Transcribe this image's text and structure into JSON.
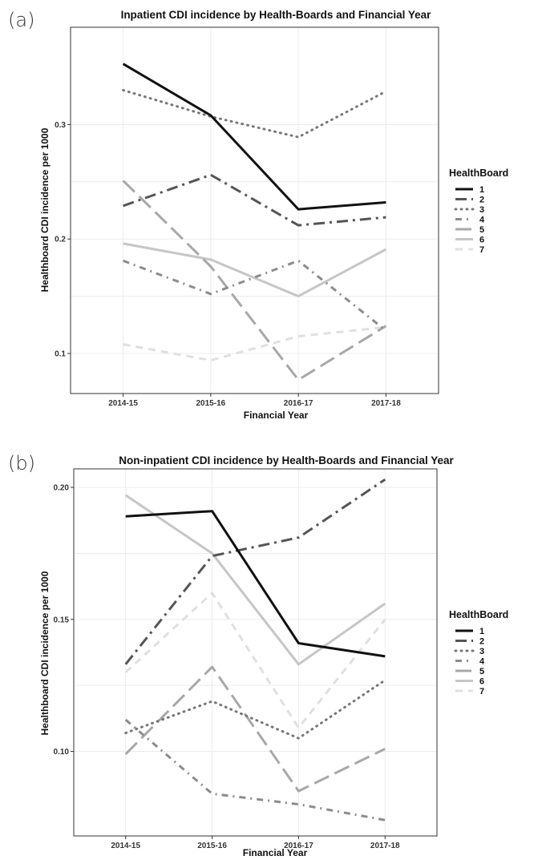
{
  "chart_data": [
    {
      "type": "line",
      "panel_label": "(a)",
      "title": "Inpatient CDI incidence by Health-Boards and Financial Year",
      "xlabel": "Financial Year",
      "ylabel": "Healthboard CDI incidence per 1000",
      "categories": [
        "2014-15",
        "2015-16",
        "2016-17",
        "2017-18"
      ],
      "ylim": [
        0.065,
        0.385
      ],
      "yticks": [
        0.1,
        0.2,
        0.3
      ],
      "ytick_labels": [
        "0.1",
        "0.2",
        "0.3"
      ],
      "grid": true,
      "legend": {
        "title": "HealthBoard",
        "placement": "right"
      },
      "series": [
        {
          "name": "1",
          "values": [
            0.353,
            0.308,
            0.226,
            0.232
          ],
          "color": "#111111",
          "dash": "solid",
          "width": 3
        },
        {
          "name": "2",
          "values": [
            0.229,
            0.256,
            0.212,
            0.219
          ],
          "color": "#555555",
          "dash": "dashdot",
          "width": 3
        },
        {
          "name": "3",
          "values": [
            0.33,
            0.307,
            0.289,
            0.329
          ],
          "color": "#777777",
          "dash": "dotted",
          "width": 3
        },
        {
          "name": "4",
          "values": [
            0.181,
            0.152,
            0.181,
            0.12
          ],
          "color": "#8c8c8c",
          "dash": "dashdot2",
          "width": 3
        },
        {
          "name": "5",
          "values": [
            0.251,
            0.176,
            0.077,
            0.124
          ],
          "color": "#a8a8a8",
          "dash": "longdash",
          "width": 3
        },
        {
          "name": "6",
          "values": [
            0.196,
            0.182,
            0.15,
            0.191
          ],
          "color": "#c6c6c6",
          "dash": "solid",
          "width": 3
        },
        {
          "name": "7",
          "values": [
            0.108,
            0.094,
            0.115,
            0.123
          ],
          "color": "#e0e0e0",
          "dash": "dashed",
          "width": 3
        }
      ]
    },
    {
      "type": "line",
      "panel_label": "(b)",
      "title": "Non-inpatient CDI incidence by Health-Boards and Financial Year",
      "xlabel": "Financial Year",
      "ylabel": "Healthboard CDI incidence per 1000",
      "categories": [
        "2014-15",
        "2015-16",
        "2016-17",
        "2017-18"
      ],
      "ylim": [
        0.068,
        0.207
      ],
      "yticks": [
        0.1,
        0.15,
        0.2
      ],
      "ytick_labels": [
        "0.10",
        "0.15",
        "0.20"
      ],
      "grid": true,
      "legend": {
        "title": "HealthBoard",
        "placement": "right"
      },
      "series": [
        {
          "name": "1",
          "values": [
            0.189,
            0.191,
            0.141,
            0.136
          ],
          "color": "#111111",
          "dash": "solid",
          "width": 3
        },
        {
          "name": "2",
          "values": [
            0.133,
            0.174,
            0.181,
            0.203
          ],
          "color": "#555555",
          "dash": "dashdot",
          "width": 3
        },
        {
          "name": "3",
          "values": [
            0.107,
            0.119,
            0.105,
            0.127
          ],
          "color": "#777777",
          "dash": "dotted",
          "width": 3
        },
        {
          "name": "4",
          "values": [
            0.112,
            0.084,
            0.08,
            0.074
          ],
          "color": "#8c8c8c",
          "dash": "dashdot2",
          "width": 3
        },
        {
          "name": "5",
          "values": [
            0.099,
            0.132,
            0.085,
            0.101
          ],
          "color": "#a8a8a8",
          "dash": "longdash",
          "width": 3
        },
        {
          "name": "6",
          "values": [
            0.197,
            0.175,
            0.133,
            0.156
          ],
          "color": "#c6c6c6",
          "dash": "solid",
          "width": 3
        },
        {
          "name": "7",
          "values": [
            0.13,
            0.16,
            0.109,
            0.15
          ],
          "color": "#e0e0e0",
          "dash": "dashed",
          "width": 3
        }
      ]
    }
  ]
}
